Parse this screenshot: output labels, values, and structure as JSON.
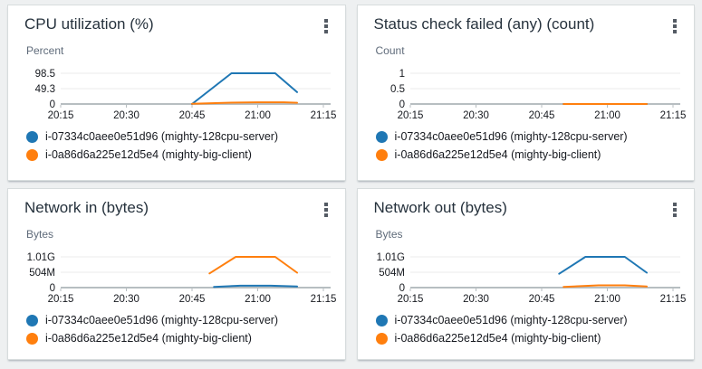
{
  "page": {
    "background_color": "#eef0f1",
    "card_background": "#ffffff",
    "title_color": "#26323d"
  },
  "icons": {
    "widget_menu": "kebab-menu-icon"
  },
  "colors": {
    "series_blue": "#1f77b4",
    "series_orange": "#ff7f0e",
    "grid_line": "#ebebeb",
    "axis_line": "#b7bec1"
  },
  "chart_data": [
    {
      "type": "line",
      "title": "CPU utilization (%)",
      "ylabel": "Percent",
      "x_ticks": [
        "20:15",
        "20:30",
        "20:45",
        "21:00",
        "21:15"
      ],
      "x_range": [
        "20:15",
        "21:15"
      ],
      "y_ticks": [
        {
          "label": "98.5",
          "value": 98.5
        },
        {
          "label": "49.3",
          "value": 49.3
        },
        {
          "label": "0",
          "value": 0
        }
      ],
      "grid": true,
      "legend_position": "bottom",
      "series": [
        {
          "name": "i-07334c0aee0e51d96 (mighty-128cpu-server)",
          "color": "#1f77b4",
          "points": [
            [
              "20:45",
              0
            ],
            [
              "20:54",
              98.5
            ],
            [
              "21:04",
              98.5
            ],
            [
              "21:09",
              38
            ]
          ]
        },
        {
          "name": "i-0a86d6a225e12d5e4 (mighty-big-client)",
          "color": "#ff7f0e",
          "points": [
            [
              "20:45",
              1
            ],
            [
              "20:53",
              4
            ],
            [
              "21:00",
              5.5
            ],
            [
              "21:06",
              5.5
            ],
            [
              "21:09",
              4
            ]
          ]
        }
      ]
    },
    {
      "type": "line",
      "title": "Status check failed (any) (count)",
      "ylabel": "Count",
      "x_ticks": [
        "20:15",
        "20:30",
        "20:45",
        "21:00",
        "21:15"
      ],
      "x_range": [
        "20:15",
        "21:15"
      ],
      "y_ticks": [
        {
          "label": "1",
          "value": 1
        },
        {
          "label": "0.5",
          "value": 0.5
        },
        {
          "label": "0",
          "value": 0
        }
      ],
      "grid": true,
      "legend_position": "bottom",
      "series": [
        {
          "name": "i-07334c0aee0e51d96 (mighty-128cpu-server)",
          "color": "#1f77b4",
          "points": [
            [
              "20:50",
              0
            ],
            [
              "21:09",
              0
            ]
          ]
        },
        {
          "name": "i-0a86d6a225e12d5e4 (mighty-big-client)",
          "color": "#ff7f0e",
          "points": [
            [
              "20:50",
              0
            ],
            [
              "21:09",
              0
            ]
          ]
        }
      ]
    },
    {
      "type": "line",
      "title": "Network in (bytes)",
      "ylabel": "Bytes",
      "value_unit": "MB",
      "x_ticks": [
        "20:15",
        "20:30",
        "20:45",
        "21:00",
        "21:15"
      ],
      "x_range": [
        "20:15",
        "21:15"
      ],
      "y_ticks": [
        {
          "label": "1.01G",
          "value": 1010
        },
        {
          "label": "504M",
          "value": 504
        },
        {
          "label": "0",
          "value": 0
        }
      ],
      "grid": true,
      "legend_position": "bottom",
      "series": [
        {
          "name": "i-07334c0aee0e51d96 (mighty-128cpu-server)",
          "color": "#1f77b4",
          "points": [
            [
              "20:50",
              25
            ],
            [
              "20:56",
              62
            ],
            [
              "21:03",
              62
            ],
            [
              "21:09",
              35
            ]
          ]
        },
        {
          "name": "i-0a86d6a225e12d5e4 (mighty-big-client)",
          "color": "#ff7f0e",
          "points": [
            [
              "20:49",
              465
            ],
            [
              "20:55",
              1010
            ],
            [
              "21:04",
              1010
            ],
            [
              "21:09",
              490
            ]
          ]
        }
      ]
    },
    {
      "type": "line",
      "title": "Network out (bytes)",
      "ylabel": "Bytes",
      "value_unit": "MB",
      "x_ticks": [
        "20:15",
        "20:30",
        "20:45",
        "21:00",
        "21:15"
      ],
      "x_range": [
        "20:15",
        "21:15"
      ],
      "y_ticks": [
        {
          "label": "1.01G",
          "value": 1010
        },
        {
          "label": "504M",
          "value": 504
        },
        {
          "label": "0",
          "value": 0
        }
      ],
      "grid": true,
      "legend_position": "bottom",
      "series": [
        {
          "name": "i-07334c0aee0e51d96 (mighty-128cpu-server)",
          "color": "#1f77b4",
          "points": [
            [
              "20:49",
              455
            ],
            [
              "20:55",
              1010
            ],
            [
              "21:04",
              1010
            ],
            [
              "21:09",
              490
            ]
          ]
        },
        {
          "name": "i-0a86d6a225e12d5e4 (mighty-big-client)",
          "color": "#ff7f0e",
          "points": [
            [
              "20:50",
              25
            ],
            [
              "20:58",
              75
            ],
            [
              "21:04",
              75
            ],
            [
              "21:09",
              35
            ]
          ]
        }
      ]
    }
  ]
}
